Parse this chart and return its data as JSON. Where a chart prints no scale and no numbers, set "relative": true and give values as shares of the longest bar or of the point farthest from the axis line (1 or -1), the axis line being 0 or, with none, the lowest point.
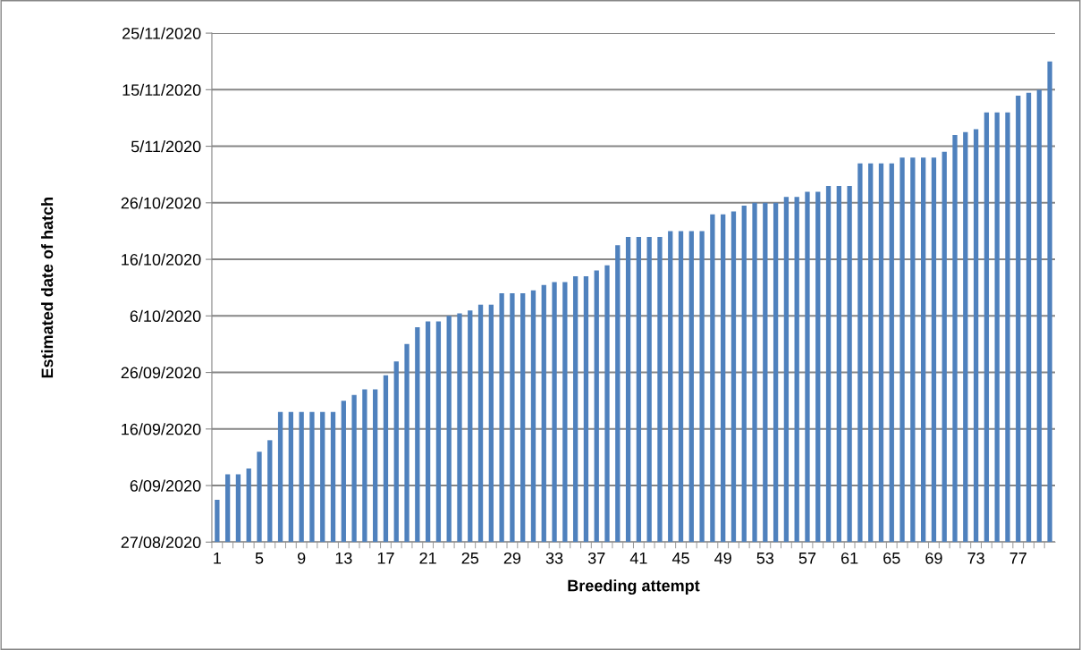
{
  "chart_data": {
    "type": "bar",
    "relative": true,
    "xlabel": "Breeding attempt",
    "color": "#4f81bd",
    "grid": "y",
    "categories": [
      "1",
      null,
      null,
      null,
      "5",
      null,
      null,
      null,
      "9",
      null,
      null,
      null,
      "13",
      null,
      null,
      null,
      "17",
      null,
      null,
      null,
      "21",
      null,
      null,
      null,
      "25",
      null,
      null,
      null,
      "29",
      null,
      null,
      null,
      "33",
      null,
      null,
      null,
      "37",
      null,
      null,
      null,
      "41",
      null,
      null,
      null,
      "45",
      null,
      null,
      null,
      "49",
      null,
      null,
      null,
      "53",
      null,
      null,
      null,
      "57",
      null,
      null,
      null,
      "61",
      null,
      null,
      null,
      "65",
      null,
      null,
      null,
      "69",
      null,
      null,
      null,
      "73",
      null,
      null,
      null,
      "77",
      null,
      null,
      null
    ],
    "values": [
      0.088,
      0.141,
      0.141,
      0.153,
      0.188,
      0.212,
      0.271,
      0.271,
      0.271,
      0.271,
      0.271,
      0.271,
      0.294,
      0.306,
      0.318,
      0.318,
      0.347,
      0.376,
      0.412,
      0.447,
      0.459,
      0.459,
      0.471,
      0.476,
      0.482,
      0.494,
      0.494,
      0.518,
      0.518,
      0.518,
      0.524,
      0.535,
      0.541,
      0.541,
      0.553,
      0.553,
      0.565,
      0.576,
      0.618,
      0.635,
      0.635,
      0.635,
      0.635,
      0.647,
      0.647,
      0.647,
      0.647,
      0.682,
      0.682,
      0.688,
      0.7,
      0.706,
      0.706,
      0.706,
      0.718,
      0.718,
      0.729,
      0.729,
      0.741,
      0.741,
      0.741,
      0.788,
      0.788,
      0.788,
      0.788,
      0.8,
      0.8,
      0.8,
      0.8,
      0.812,
      0.847,
      0.853,
      0.859,
      0.894,
      0.894,
      0.894,
      0.929,
      0.935,
      0.941,
      1
    ],
    "ylim": [
      0,
      1.059
    ],
    "annotations": [
      "27/08/2020",
      "6/09/2020",
      "16/09/2020",
      "26/09/2020",
      "6/10/2020",
      "16/10/2020",
      "26/10/2020",
      "5/11/2020",
      "15/11/2020",
      "25/11/2020",
      "Estimated date of hatch"
    ]
  }
}
